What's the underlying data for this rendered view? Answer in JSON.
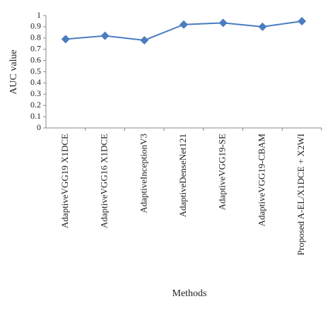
{
  "chart_data": {
    "type": "line",
    "categories": [
      "AdaptiveVGG19 X1DCE",
      "AdaptiveVGG16 X1DCE",
      "AdaptiveInceptionV3",
      "AdaptiveDenseNet121",
      "AdaptiveVGG19-SE",
      "AdaptiveVGG19-CBAM",
      "Proposed A-EL/X1DCE + X2WI"
    ],
    "series": [
      {
        "name": "AUC value",
        "color": "#4a7cc0",
        "values": [
          0.79,
          0.82,
          0.78,
          0.92,
          0.935,
          0.9,
          0.95
        ]
      }
    ],
    "x_label": "Methods",
    "y_label": "AUC value",
    "ylim": [
      0,
      1
    ],
    "yticks": [
      0,
      0.1,
      0.2,
      0.3,
      0.4,
      0.5,
      0.6,
      0.7,
      0.8,
      0.9,
      1
    ],
    "grid": false
  }
}
